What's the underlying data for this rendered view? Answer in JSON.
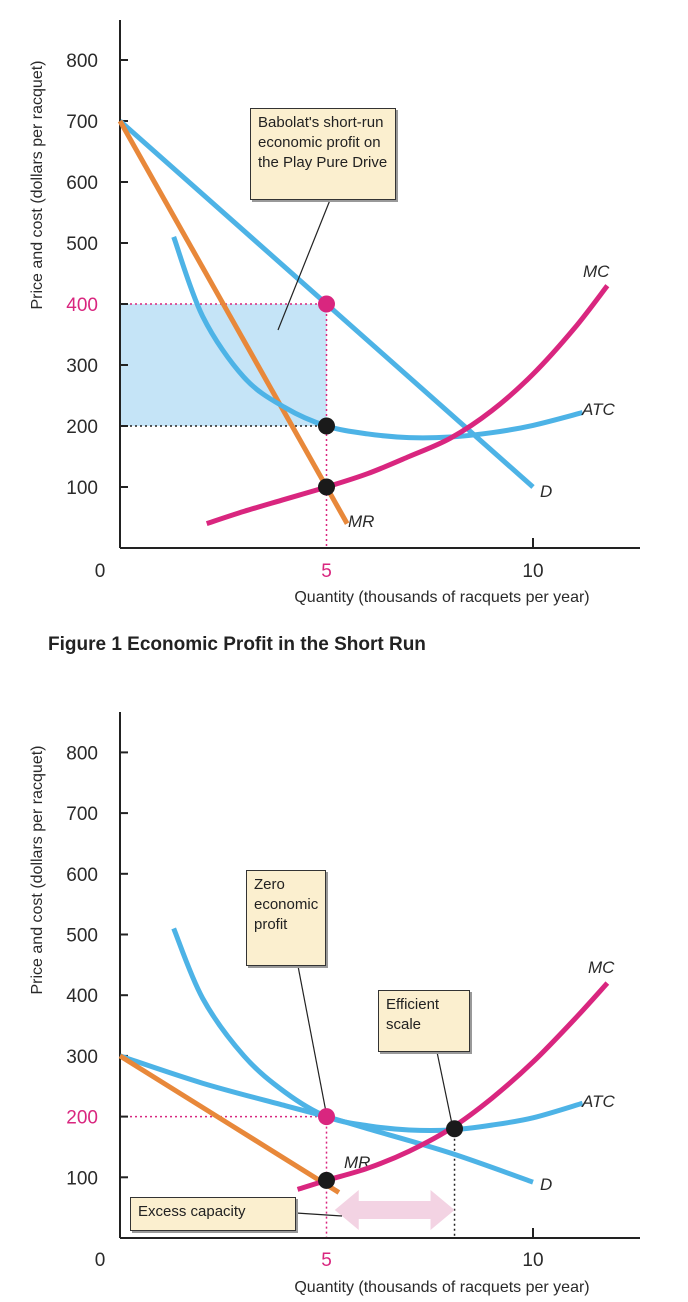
{
  "figure_caption": "Figure 1  Economic Profit in the Short Run",
  "colors": {
    "demand": "#4db3e6",
    "atc": "#4db3e6",
    "mr": "#e8883a",
    "mc": "#d9267f",
    "profit_area": "#c5e4f7",
    "highlight": "#d9267f",
    "callout_bg": "#fbefcf",
    "arrow": "#f3d3e3"
  },
  "chart_data": [
    {
      "type": "line",
      "title": "Economic Profit in the Short Run",
      "xlabel": "Quantity (thousands of racquets per year)",
      "ylabel": "Price and cost (dollars per racquet)",
      "xlim": [
        0,
        12.6
      ],
      "ylim": [
        0,
        880
      ],
      "x_ticks": [
        "0",
        "5",
        "10"
      ],
      "y_ticks": [
        "100",
        "200",
        "300",
        "400",
        "500",
        "600",
        "700",
        "800"
      ],
      "highlight_y_tick": "400",
      "series": [
        {
          "name": "D",
          "points": [
            [
              0,
              700
            ],
            [
              10,
              100
            ]
          ]
        },
        {
          "name": "MR",
          "points": [
            [
              0,
              700
            ],
            [
              5.5,
              40
            ]
          ]
        },
        {
          "name": "ATC",
          "points": [
            [
              1.3,
              510
            ],
            [
              2,
              380
            ],
            [
              3,
              280
            ],
            [
              4,
              230
            ],
            [
              5,
              200
            ],
            [
              6,
              187
            ],
            [
              7,
              181
            ],
            [
              8,
              182
            ],
            [
              9,
              189
            ],
            [
              10,
              201
            ],
            [
              11.2,
              222
            ]
          ]
        },
        {
          "name": "MC",
          "points": [
            [
              2.1,
              40
            ],
            [
              3,
              60
            ],
            [
              4,
              80
            ],
            [
              5,
              100
            ],
            [
              6,
              122
            ],
            [
              7,
              150
            ],
            [
              8,
              180
            ],
            [
              9,
              225
            ],
            [
              10,
              285
            ],
            [
              11,
              360
            ],
            [
              11.8,
              430
            ]
          ]
        }
      ],
      "points": [
        {
          "x": 5,
          "y": 400,
          "color": "pink"
        },
        {
          "x": 5,
          "y": 200,
          "color": "black"
        },
        {
          "x": 5,
          "y": 100,
          "color": "black"
        }
      ],
      "shaded_area": {
        "x": [
          0,
          5
        ],
        "y": [
          200,
          400
        ]
      },
      "annotations": [
        "Babolat's short-run economic profit on the Play Pure Drive"
      ]
    },
    {
      "type": "line",
      "title": "",
      "xlabel": "Quantity (thousands of racquets per year)",
      "ylabel": "Price and cost (dollars per racquet)",
      "xlim": [
        0,
        12.6
      ],
      "ylim": [
        0,
        880
      ],
      "x_ticks": [
        "0",
        "5",
        "10"
      ],
      "y_ticks": [
        "100",
        "200",
        "300",
        "400",
        "500",
        "600",
        "700",
        "800"
      ],
      "highlight_y_tick": "200",
      "series": [
        {
          "name": "D",
          "points": [
            [
              0,
              300
            ],
            [
              2,
              255
            ],
            [
              4,
              218
            ],
            [
              5,
              200
            ],
            [
              6,
              180
            ],
            [
              8,
              140
            ],
            [
              10,
              92
            ]
          ]
        },
        {
          "name": "MR",
          "points": [
            [
              0,
              300
            ],
            [
              5.3,
              75
            ]
          ]
        },
        {
          "name": "ATC",
          "points": [
            [
              1.3,
              510
            ],
            [
              2,
              395
            ],
            [
              3,
              300
            ],
            [
              4,
              240
            ],
            [
              5,
              200
            ],
            [
              6,
              185
            ],
            [
              7,
              178
            ],
            [
              8,
              178
            ],
            [
              9,
              186
            ],
            [
              10,
              198
            ],
            [
              11.2,
              222
            ]
          ]
        },
        {
          "name": "MC",
          "points": [
            [
              4.3,
              80
            ],
            [
              5,
              95
            ],
            [
              6,
              115
            ],
            [
              7,
              143
            ],
            [
              8,
              180
            ],
            [
              9,
              230
            ],
            [
              10,
              290
            ],
            [
              11,
              360
            ],
            [
              11.8,
              420
            ]
          ]
        }
      ],
      "points": [
        {
          "x": 5,
          "y": 200,
          "color": "pink"
        },
        {
          "x": 5,
          "y": 95,
          "color": "black"
        },
        {
          "x": 8.1,
          "y": 180,
          "color": "black"
        }
      ],
      "excess_capacity_arrow": {
        "x": [
          5.2,
          8.1
        ]
      },
      "annotations": [
        "Zero economic profit",
        "Efficient scale",
        "Excess capacity"
      ]
    }
  ]
}
